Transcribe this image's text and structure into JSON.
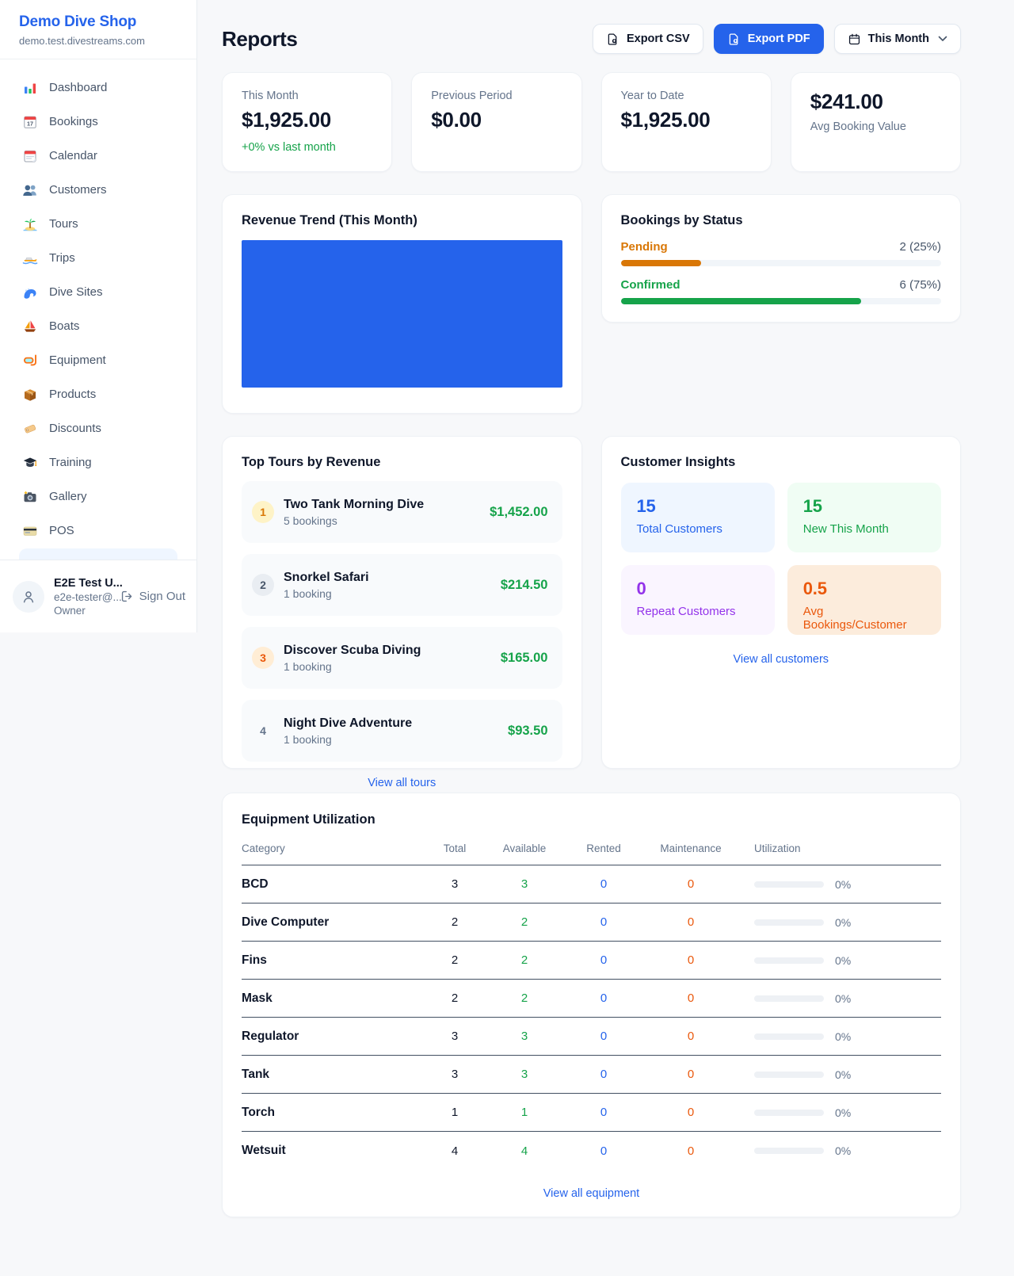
{
  "colors": {
    "accent": "#2563eb",
    "green": "#16a34a",
    "amber": "#d97706",
    "orange": "#ea580c",
    "purple": "#9333ea"
  },
  "sidebar": {
    "brand": {
      "title": "Demo Dive Shop",
      "subtitle": "demo.test.divestreams.com"
    },
    "items": [
      {
        "label": "Dashboard",
        "icon": "bar-chart"
      },
      {
        "label": "Bookings",
        "icon": "calendar-date"
      },
      {
        "label": "Calendar",
        "icon": "tear-off-calendar"
      },
      {
        "label": "Customers",
        "icon": "people"
      },
      {
        "label": "Tours",
        "icon": "island"
      },
      {
        "label": "Trips",
        "icon": "speedboat"
      },
      {
        "label": "Dive Sites",
        "icon": "wave"
      },
      {
        "label": "Boats",
        "icon": "sailboat"
      },
      {
        "label": "Equipment",
        "icon": "dive-mask"
      },
      {
        "label": "Products",
        "icon": "package"
      },
      {
        "label": "Discounts",
        "icon": "tag"
      },
      {
        "label": "Training",
        "icon": "graduation-cap"
      },
      {
        "label": "Gallery",
        "icon": "camera"
      },
      {
        "label": "POS",
        "icon": "credit-card"
      }
    ],
    "user": {
      "name": "E2E Test U...",
      "email": "e2e-tester@...",
      "role": "Owner",
      "sign_out": "Sign Out"
    }
  },
  "header": {
    "title": "Reports",
    "export_csv": "Export CSV",
    "export_pdf": "Export PDF",
    "period": "This Month"
  },
  "stats": [
    {
      "label": "This Month",
      "value": "$1,925.00",
      "delta": "+0% vs last month"
    },
    {
      "label": "Previous Period",
      "value": "$0.00"
    },
    {
      "label": "Year to Date",
      "value": "$1,925.00"
    },
    {
      "label": "Avg Booking Value",
      "value": "$241.00"
    }
  ],
  "revenue": {
    "title": "Revenue Trend (This Month)",
    "bar_color": "#2563eb"
  },
  "bookings_status": {
    "title": "Bookings by Status",
    "rows": [
      {
        "label": "Pending",
        "count": "2 (25%)",
        "percent": 25,
        "color": "#d97706"
      },
      {
        "label": "Confirmed",
        "count": "6 (75%)",
        "percent": 75,
        "color": "#16a34a"
      }
    ]
  },
  "top_tours": {
    "title": "Top Tours by Revenue",
    "rows": [
      {
        "rank": "1",
        "name": "Two Tank Morning Dive",
        "bookings": "5 bookings",
        "revenue": "$1,452.00"
      },
      {
        "rank": "2",
        "name": "Snorkel Safari",
        "bookings": "1 booking",
        "revenue": "$214.50"
      },
      {
        "rank": "3",
        "name": "Discover Scuba Diving",
        "bookings": "1 booking",
        "revenue": "$165.00"
      },
      {
        "rank": "4",
        "name": "Night Dive Adventure",
        "bookings": "1 booking",
        "revenue": "$93.50"
      }
    ],
    "view_all": "View all tours"
  },
  "insights": {
    "title": "Customer Insights",
    "tiles": [
      {
        "value": "15",
        "label": "Total Customers"
      },
      {
        "value": "15",
        "label": "New This Month"
      },
      {
        "value": "0",
        "label": "Repeat Customers"
      },
      {
        "value": "0.5",
        "label": "Avg Bookings/Customer"
      }
    ],
    "view_all": "View all customers"
  },
  "equipment": {
    "title": "Equipment Utilization",
    "headers": [
      "Category",
      "Total",
      "Available",
      "Rented",
      "Maintenance",
      "Utilization"
    ],
    "rows": [
      {
        "category": "BCD",
        "total": "3",
        "available": "3",
        "rented": "0",
        "maintenance": "0",
        "utilization": "0%"
      },
      {
        "category": "Dive Computer",
        "total": "2",
        "available": "2",
        "rented": "0",
        "maintenance": "0",
        "utilization": "0%"
      },
      {
        "category": "Fins",
        "total": "2",
        "available": "2",
        "rented": "0",
        "maintenance": "0",
        "utilization": "0%"
      },
      {
        "category": "Mask",
        "total": "2",
        "available": "2",
        "rented": "0",
        "maintenance": "0",
        "utilization": "0%"
      },
      {
        "category": "Regulator",
        "total": "3",
        "available": "3",
        "rented": "0",
        "maintenance": "0",
        "utilization": "0%"
      },
      {
        "category": "Tank",
        "total": "3",
        "available": "3",
        "rented": "0",
        "maintenance": "0",
        "utilization": "0%"
      },
      {
        "category": "Torch",
        "total": "1",
        "available": "1",
        "rented": "0",
        "maintenance": "0",
        "utilization": "0%"
      },
      {
        "category": "Wetsuit",
        "total": "4",
        "available": "4",
        "rented": "0",
        "maintenance": "0",
        "utilization": "0%"
      }
    ],
    "view_all": "View all equipment"
  }
}
